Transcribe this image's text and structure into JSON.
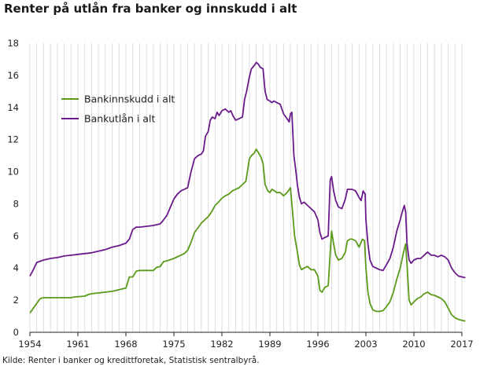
{
  "title": "Renter på utlån fra banker og innskudd i alt",
  "source": "Kilde: Renter i banker og kredittforetak, Statistisk sentralbyrå.",
  "chart_data": {
    "type": "line",
    "xlim": [
      1954,
      2017
    ],
    "ylim": [
      0,
      18
    ],
    "y_ticks": [
      0,
      2,
      4,
      6,
      8,
      10,
      12,
      14,
      16,
      18
    ],
    "x_ticks": [
      1954,
      1961,
      1968,
      1975,
      1982,
      1989,
      1996,
      2003,
      2010,
      2017
    ],
    "grid": "vertical yearly gridlines",
    "legend_position": "upper-left",
    "series": [
      {
        "name": "Bankinnskudd i alt",
        "color": "#5a9a1a",
        "points": [
          [
            1954.0,
            1.2
          ],
          [
            1954.5,
            1.5
          ],
          [
            1955.0,
            1.8
          ],
          [
            1955.5,
            2.1
          ],
          [
            1956,
            2.15
          ],
          [
            1958,
            2.15
          ],
          [
            1960,
            2.15
          ],
          [
            1960.5,
            2.2
          ],
          [
            1962,
            2.25
          ],
          [
            1962.5,
            2.35
          ],
          [
            1963,
            2.4
          ],
          [
            1964,
            2.45
          ],
          [
            1965,
            2.5
          ],
          [
            1966,
            2.55
          ],
          [
            1967,
            2.65
          ],
          [
            1968,
            2.75
          ],
          [
            1968.5,
            3.45
          ],
          [
            1969,
            3.45
          ],
          [
            1969.5,
            3.8
          ],
          [
            1970,
            3.85
          ],
          [
            1971,
            3.85
          ],
          [
            1972,
            3.85
          ],
          [
            1972.5,
            4.05
          ],
          [
            1973,
            4.1
          ],
          [
            1973.5,
            4.4
          ],
          [
            1974,
            4.45
          ],
          [
            1975,
            4.6
          ],
          [
            1976,
            4.8
          ],
          [
            1976.5,
            4.9
          ],
          [
            1977,
            5.1
          ],
          [
            1977.5,
            5.6
          ],
          [
            1978,
            6.2
          ],
          [
            1978.5,
            6.5
          ],
          [
            1979,
            6.8
          ],
          [
            1979.5,
            7.0
          ],
          [
            1980,
            7.2
          ],
          [
            1980.5,
            7.5
          ],
          [
            1981,
            7.9
          ],
          [
            1981.5,
            8.1
          ],
          [
            1982,
            8.35
          ],
          [
            1982.5,
            8.5
          ],
          [
            1983,
            8.6
          ],
          [
            1983.5,
            8.8
          ],
          [
            1984,
            8.9
          ],
          [
            1984.5,
            9.0
          ],
          [
            1985,
            9.2
          ],
          [
            1985.5,
            9.4
          ],
          [
            1986,
            10.8
          ],
          [
            1986.3,
            11.0
          ],
          [
            1986.7,
            11.15
          ],
          [
            1987,
            11.4
          ],
          [
            1987.3,
            11.2
          ],
          [
            1987.7,
            10.9
          ],
          [
            1988,
            10.5
          ],
          [
            1988.3,
            9.2
          ],
          [
            1988.7,
            8.8
          ],
          [
            1989,
            8.7
          ],
          [
            1989.3,
            8.9
          ],
          [
            1989.7,
            8.8
          ],
          [
            1990,
            8.7
          ],
          [
            1990.5,
            8.7
          ],
          [
            1991,
            8.5
          ],
          [
            1991.5,
            8.7
          ],
          [
            1992,
            9.0
          ],
          [
            1992.3,
            7.5
          ],
          [
            1992.6,
            6.0
          ],
          [
            1993,
            5.0
          ],
          [
            1993.3,
            4.2
          ],
          [
            1993.6,
            3.9
          ],
          [
            1994,
            4.0
          ],
          [
            1994.5,
            4.1
          ],
          [
            1995,
            3.9
          ],
          [
            1995.5,
            3.9
          ],
          [
            1996,
            3.5
          ],
          [
            1996.3,
            2.6
          ],
          [
            1996.6,
            2.5
          ],
          [
            1997,
            2.8
          ],
          [
            1997.5,
            2.9
          ],
          [
            1997.8,
            5.0
          ],
          [
            1998,
            6.3
          ],
          [
            1998.3,
            5.5
          ],
          [
            1998.6,
            4.8
          ],
          [
            1999,
            4.5
          ],
          [
            1999.5,
            4.6
          ],
          [
            2000,
            5.0
          ],
          [
            2000.3,
            5.7
          ],
          [
            2000.7,
            5.8
          ],
          [
            2001,
            5.8
          ],
          [
            2001.5,
            5.7
          ],
          [
            2002,
            5.3
          ],
          [
            2002.5,
            5.8
          ],
          [
            2002.8,
            5.7
          ],
          [
            2003,
            4.0
          ],
          [
            2003.3,
            2.5
          ],
          [
            2003.6,
            1.8
          ],
          [
            2004,
            1.4
          ],
          [
            2004.5,
            1.3
          ],
          [
            2005,
            1.3
          ],
          [
            2005.5,
            1.35
          ],
          [
            2006,
            1.6
          ],
          [
            2006.5,
            1.9
          ],
          [
            2007,
            2.5
          ],
          [
            2007.5,
            3.3
          ],
          [
            2008,
            4.0
          ],
          [
            2008.5,
            5.0
          ],
          [
            2008.8,
            5.5
          ],
          [
            2009,
            4.2
          ],
          [
            2009.3,
            2.0
          ],
          [
            2009.6,
            1.7
          ],
          [
            2010,
            1.9
          ],
          [
            2010.5,
            2.1
          ],
          [
            2011,
            2.2
          ],
          [
            2011.5,
            2.4
          ],
          [
            2012,
            2.5
          ],
          [
            2012.5,
            2.35
          ],
          [
            2013,
            2.3
          ],
          [
            2013.5,
            2.2
          ],
          [
            2014,
            2.1
          ],
          [
            2014.5,
            1.9
          ],
          [
            2015,
            1.5
          ],
          [
            2015.5,
            1.1
          ],
          [
            2016,
            0.9
          ],
          [
            2016.5,
            0.8
          ],
          [
            2017,
            0.75
          ],
          [
            2017.5,
            0.7
          ]
        ]
      },
      {
        "name": "Bankutlån i alt",
        "color": "#6a1a8a",
        "points": [
          [
            1954.0,
            3.5
          ],
          [
            1954.5,
            3.9
          ],
          [
            1955.0,
            4.35
          ],
          [
            1956,
            4.5
          ],
          [
            1957,
            4.6
          ],
          [
            1958,
            4.65
          ],
          [
            1959,
            4.75
          ],
          [
            1960,
            4.8
          ],
          [
            1961,
            4.85
          ],
          [
            1962,
            4.9
          ],
          [
            1963,
            4.95
          ],
          [
            1964,
            5.05
          ],
          [
            1965,
            5.15
          ],
          [
            1966,
            5.3
          ],
          [
            1967,
            5.4
          ],
          [
            1968,
            5.55
          ],
          [
            1968.5,
            5.8
          ],
          [
            1969,
            6.4
          ],
          [
            1969.5,
            6.55
          ],
          [
            1970,
            6.55
          ],
          [
            1971,
            6.6
          ],
          [
            1972,
            6.65
          ],
          [
            1973,
            6.75
          ],
          [
            1973.5,
            7.0
          ],
          [
            1974,
            7.3
          ],
          [
            1974.5,
            7.8
          ],
          [
            1975,
            8.3
          ],
          [
            1975.5,
            8.6
          ],
          [
            1976,
            8.8
          ],
          [
            1976.5,
            8.9
          ],
          [
            1977,
            9.0
          ],
          [
            1977.5,
            10.0
          ],
          [
            1978,
            10.8
          ],
          [
            1978.5,
            11.0
          ],
          [
            1979,
            11.1
          ],
          [
            1979.3,
            11.3
          ],
          [
            1979.6,
            12.2
          ],
          [
            1980,
            12.5
          ],
          [
            1980.3,
            13.2
          ],
          [
            1980.6,
            13.4
          ],
          [
            1981,
            13.3
          ],
          [
            1981.3,
            13.7
          ],
          [
            1981.6,
            13.5
          ],
          [
            1982,
            13.8
          ],
          [
            1982.5,
            13.9
          ],
          [
            1983,
            13.7
          ],
          [
            1983.3,
            13.8
          ],
          [
            1983.6,
            13.5
          ],
          [
            1984,
            13.2
          ],
          [
            1984.5,
            13.3
          ],
          [
            1985,
            13.4
          ],
          [
            1985.3,
            14.5
          ],
          [
            1985.6,
            15.0
          ],
          [
            1986,
            15.9
          ],
          [
            1986.3,
            16.4
          ],
          [
            1986.7,
            16.6
          ],
          [
            1987,
            16.8
          ],
          [
            1987.3,
            16.7
          ],
          [
            1987.6,
            16.5
          ],
          [
            1988,
            16.4
          ],
          [
            1988.3,
            15.0
          ],
          [
            1988.6,
            14.5
          ],
          [
            1989,
            14.4
          ],
          [
            1989.3,
            14.3
          ],
          [
            1989.6,
            14.4
          ],
          [
            1990,
            14.3
          ],
          [
            1990.5,
            14.2
          ],
          [
            1991,
            13.6
          ],
          [
            1991.5,
            13.3
          ],
          [
            1991.8,
            13.1
          ],
          [
            1992,
            13.6
          ],
          [
            1992.2,
            13.7
          ],
          [
            1992.5,
            11.0
          ],
          [
            1992.8,
            10.0
          ],
          [
            1993,
            9.2
          ],
          [
            1993.3,
            8.4
          ],
          [
            1993.6,
            8.0
          ],
          [
            1994,
            8.1
          ],
          [
            1994.5,
            7.9
          ],
          [
            1995,
            7.7
          ],
          [
            1995.5,
            7.5
          ],
          [
            1996,
            7.0
          ],
          [
            1996.3,
            6.2
          ],
          [
            1996.6,
            5.8
          ],
          [
            1997,
            5.9
          ],
          [
            1997.5,
            6.0
          ],
          [
            1997.8,
            9.5
          ],
          [
            1998,
            9.7
          ],
          [
            1998.3,
            8.8
          ],
          [
            1998.6,
            8.2
          ],
          [
            1999,
            7.8
          ],
          [
            1999.5,
            7.7
          ],
          [
            2000,
            8.3
          ],
          [
            2000.3,
            8.9
          ],
          [
            2000.7,
            8.9
          ],
          [
            2001,
            8.9
          ],
          [
            2001.5,
            8.8
          ],
          [
            2002,
            8.4
          ],
          [
            2002.3,
            8.2
          ],
          [
            2002.6,
            8.8
          ],
          [
            2002.9,
            8.6
          ],
          [
            2003,
            7.0
          ],
          [
            2003.3,
            5.5
          ],
          [
            2003.6,
            4.5
          ],
          [
            2004,
            4.1
          ],
          [
            2004.5,
            4.0
          ],
          [
            2005,
            3.9
          ],
          [
            2005.5,
            3.85
          ],
          [
            2006,
            4.2
          ],
          [
            2006.5,
            4.6
          ],
          [
            2007,
            5.3
          ],
          [
            2007.5,
            6.3
          ],
          [
            2008,
            7.0
          ],
          [
            2008.3,
            7.5
          ],
          [
            2008.6,
            7.9
          ],
          [
            2008.8,
            7.5
          ],
          [
            2009,
            5.5
          ],
          [
            2009.3,
            4.5
          ],
          [
            2009.6,
            4.3
          ],
          [
            2010,
            4.5
          ],
          [
            2010.5,
            4.6
          ],
          [
            2011,
            4.6
          ],
          [
            2011.5,
            4.8
          ],
          [
            2012,
            5.0
          ],
          [
            2012.5,
            4.8
          ],
          [
            2013,
            4.8
          ],
          [
            2013.5,
            4.7
          ],
          [
            2014,
            4.8
          ],
          [
            2014.5,
            4.7
          ],
          [
            2015,
            4.5
          ],
          [
            2015.5,
            4.0
          ],
          [
            2016,
            3.7
          ],
          [
            2016.5,
            3.5
          ],
          [
            2017,
            3.45
          ],
          [
            2017.5,
            3.4
          ]
        ]
      }
    ]
  }
}
